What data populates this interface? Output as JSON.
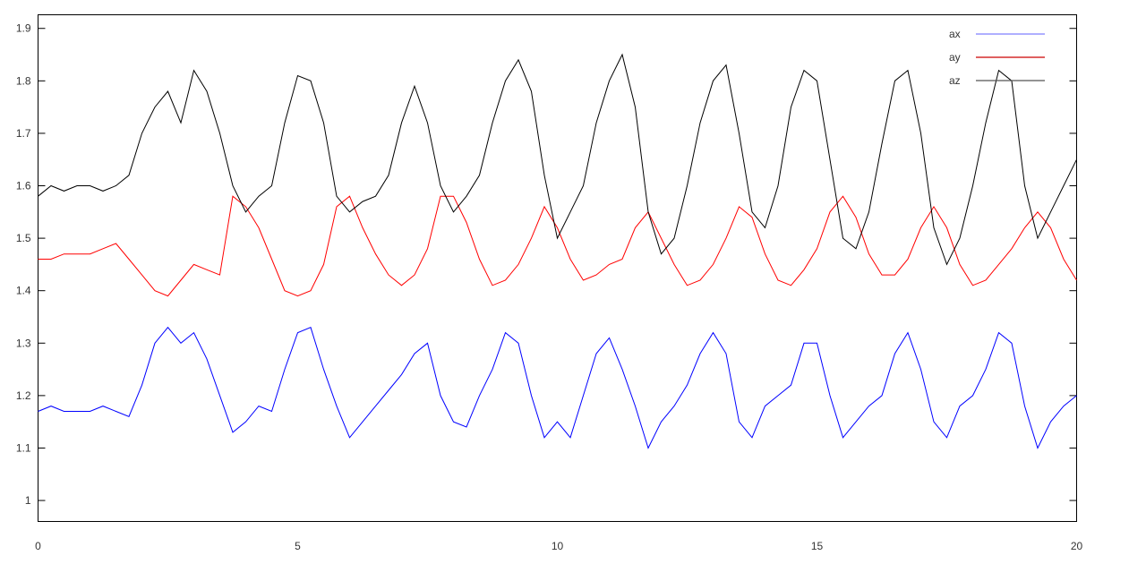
{
  "chart_data": {
    "type": "line",
    "title": "",
    "xlabel": "",
    "ylabel": "",
    "xlim": [
      0,
      20
    ],
    "ylim": [
      0.96,
      1.926
    ],
    "x_ticks": [
      "0",
      "5",
      "10",
      "15",
      "20"
    ],
    "y_ticks": [
      "1",
      "1.1",
      "1.2",
      "1.3",
      "1.4",
      "1.5",
      "1.6",
      "1.7",
      "1.8",
      "1.9"
    ],
    "grid": false,
    "legend_position": "top-right",
    "x_start": 0,
    "x_step": 0.25,
    "series": [
      {
        "name": "ax",
        "color": "#0000ff",
        "legend_color": "#7f7fff",
        "values": [
          1.17,
          1.18,
          1.17,
          1.17,
          1.17,
          1.18,
          1.17,
          1.16,
          1.22,
          1.3,
          1.33,
          1.3,
          1.32,
          1.27,
          1.2,
          1.13,
          1.15,
          1.18,
          1.17,
          1.25,
          1.32,
          1.33,
          1.25,
          1.18,
          1.12,
          1.15,
          1.18,
          1.21,
          1.24,
          1.28,
          1.3,
          1.2,
          1.15,
          1.14,
          1.2,
          1.25,
          1.32,
          1.3,
          1.2,
          1.12,
          1.15,
          1.12,
          1.2,
          1.28,
          1.31,
          1.25,
          1.18,
          1.1,
          1.15,
          1.18,
          1.22,
          1.28,
          1.32,
          1.28,
          1.15,
          1.12,
          1.18,
          1.2,
          1.22,
          1.3,
          1.3,
          1.2,
          1.12,
          1.15,
          1.18,
          1.2,
          1.28,
          1.32,
          1.25,
          1.15,
          1.12,
          1.18,
          1.2,
          1.25,
          1.32,
          1.3,
          1.18,
          1.1,
          1.15,
          1.18,
          1.2
        ]
      },
      {
        "name": "ay",
        "color": "#ff0000",
        "legend_color": "#cc0000",
        "values": [
          1.46,
          1.46,
          1.47,
          1.47,
          1.47,
          1.48,
          1.49,
          1.46,
          1.43,
          1.4,
          1.39,
          1.42,
          1.45,
          1.44,
          1.43,
          1.58,
          1.56,
          1.52,
          1.46,
          1.4,
          1.39,
          1.4,
          1.45,
          1.56,
          1.58,
          1.52,
          1.47,
          1.43,
          1.41,
          1.43,
          1.48,
          1.58,
          1.58,
          1.53,
          1.46,
          1.41,
          1.42,
          1.45,
          1.5,
          1.56,
          1.52,
          1.46,
          1.42,
          1.43,
          1.45,
          1.46,
          1.52,
          1.55,
          1.5,
          1.45,
          1.41,
          1.42,
          1.45,
          1.5,
          1.56,
          1.54,
          1.47,
          1.42,
          1.41,
          1.44,
          1.48,
          1.55,
          1.58,
          1.54,
          1.47,
          1.43,
          1.43,
          1.46,
          1.52,
          1.56,
          1.52,
          1.45,
          1.41,
          1.42,
          1.45,
          1.48,
          1.52,
          1.55,
          1.52,
          1.46,
          1.42
        ]
      },
      {
        "name": "az",
        "color": "#000000",
        "legend_color": "#555555",
        "values": [
          1.58,
          1.6,
          1.59,
          1.6,
          1.6,
          1.59,
          1.6,
          1.62,
          1.7,
          1.75,
          1.78,
          1.72,
          1.82,
          1.78,
          1.7,
          1.6,
          1.55,
          1.58,
          1.6,
          1.72,
          1.81,
          1.8,
          1.72,
          1.58,
          1.55,
          1.57,
          1.58,
          1.62,
          1.72,
          1.79,
          1.72,
          1.6,
          1.55,
          1.58,
          1.62,
          1.72,
          1.8,
          1.84,
          1.78,
          1.62,
          1.5,
          1.55,
          1.6,
          1.72,
          1.8,
          1.85,
          1.75,
          1.55,
          1.47,
          1.5,
          1.6,
          1.72,
          1.8,
          1.83,
          1.7,
          1.55,
          1.52,
          1.6,
          1.75,
          1.82,
          1.8,
          1.65,
          1.5,
          1.48,
          1.55,
          1.68,
          1.8,
          1.82,
          1.7,
          1.52,
          1.45,
          1.5,
          1.6,
          1.72,
          1.82,
          1.8,
          1.6,
          1.5,
          1.55,
          1.6,
          1.65
        ]
      }
    ]
  }
}
